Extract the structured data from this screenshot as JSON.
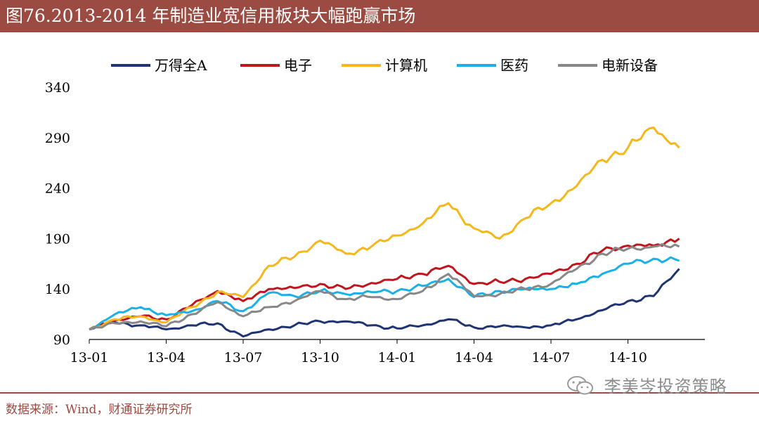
{
  "header": {
    "title": "图76.2013-2014 年制造业宽信用板块大幅跑赢市场"
  },
  "footer": {
    "source": "数据来源：Wind，财通证券研究所"
  },
  "watermark": {
    "text": "李美岑投资策略",
    "icon": "wechat-icon"
  },
  "colors": {
    "brand": "#9b4b42"
  },
  "chart_data": {
    "type": "line",
    "title": "",
    "xlabel": "",
    "ylabel": "",
    "x_ticks": [
      "13-01",
      "13-04",
      "13-07",
      "13-10",
      "14-01",
      "14-04",
      "14-07",
      "14-10"
    ],
    "x_range": [
      "2013-01",
      "2015-01"
    ],
    "y_ticks": [
      90,
      140,
      190,
      240,
      290,
      340
    ],
    "ylim": [
      90,
      340
    ],
    "grid": false,
    "legend": "top",
    "series": [
      {
        "name": "万得全A",
        "color": "#1f3473",
        "points": [
          [
            "2013-01",
            100
          ],
          [
            "2013-02",
            107
          ],
          [
            "2013-03",
            104
          ],
          [
            "2013-04",
            100
          ],
          [
            "2013-05",
            104
          ],
          [
            "2013-06",
            106
          ],
          [
            "2013-07",
            93
          ],
          [
            "2013-08",
            100
          ],
          [
            "2013-09",
            104
          ],
          [
            "2013-10",
            108
          ],
          [
            "2013-11",
            108
          ],
          [
            "2013-12",
            104
          ],
          [
            "2014-01",
            101
          ],
          [
            "2014-02",
            104
          ],
          [
            "2014-03",
            110
          ],
          [
            "2014-04",
            102
          ],
          [
            "2014-05",
            103
          ],
          [
            "2014-06",
            102
          ],
          [
            "2014-07",
            104
          ],
          [
            "2014-08",
            110
          ],
          [
            "2014-09",
            119
          ],
          [
            "2014-10",
            128
          ],
          [
            "2014-11",
            133
          ],
          [
            "2014-12",
            160
          ]
        ]
      },
      {
        "name": "电子",
        "color": "#c0171e",
        "points": [
          [
            "2013-01",
            100
          ],
          [
            "2013-02",
            109
          ],
          [
            "2013-03",
            113
          ],
          [
            "2013-04",
            110
          ],
          [
            "2013-05",
            124
          ],
          [
            "2013-06",
            138
          ],
          [
            "2013-07",
            128
          ],
          [
            "2013-08",
            140
          ],
          [
            "2013-09",
            141
          ],
          [
            "2013-10",
            145
          ],
          [
            "2013-11",
            140
          ],
          [
            "2013-12",
            146
          ],
          [
            "2014-01",
            150
          ],
          [
            "2014-02",
            155
          ],
          [
            "2014-03",
            163
          ],
          [
            "2014-04",
            145
          ],
          [
            "2014-05",
            147
          ],
          [
            "2014-06",
            150
          ],
          [
            "2014-07",
            155
          ],
          [
            "2014-08",
            165
          ],
          [
            "2014-09",
            178
          ],
          [
            "2014-10",
            183
          ],
          [
            "2014-11",
            183
          ],
          [
            "2014-12",
            190
          ]
        ]
      },
      {
        "name": "计算机",
        "color": "#f5b81c",
        "points": [
          [
            "2013-01",
            100
          ],
          [
            "2013-02",
            110
          ],
          [
            "2013-03",
            113
          ],
          [
            "2013-04",
            107
          ],
          [
            "2013-05",
            122
          ],
          [
            "2013-06",
            137
          ],
          [
            "2013-07",
            132
          ],
          [
            "2013-08",
            163
          ],
          [
            "2013-09",
            172
          ],
          [
            "2013-10",
            188
          ],
          [
            "2013-11",
            175
          ],
          [
            "2013-12",
            182
          ],
          [
            "2014-01",
            193
          ],
          [
            "2014-02",
            205
          ],
          [
            "2014-03",
            225
          ],
          [
            "2014-04",
            200
          ],
          [
            "2014-05",
            190
          ],
          [
            "2014-06",
            210
          ],
          [
            "2014-07",
            225
          ],
          [
            "2014-08",
            242
          ],
          [
            "2014-09",
            268
          ],
          [
            "2014-10",
            280
          ],
          [
            "2014-11",
            300
          ],
          [
            "2014-12",
            280
          ]
        ]
      },
      {
        "name": "医药",
        "color": "#1cb1e6",
        "points": [
          [
            "2013-01",
            100
          ],
          [
            "2013-02",
            115
          ],
          [
            "2013-03",
            122
          ],
          [
            "2013-04",
            114
          ],
          [
            "2013-05",
            118
          ],
          [
            "2013-06",
            128
          ],
          [
            "2013-07",
            118
          ],
          [
            "2013-08",
            136
          ],
          [
            "2013-09",
            133
          ],
          [
            "2013-10",
            138
          ],
          [
            "2013-11",
            135
          ],
          [
            "2013-12",
            137
          ],
          [
            "2014-01",
            138
          ],
          [
            "2014-02",
            143
          ],
          [
            "2014-03",
            150
          ],
          [
            "2014-04",
            132
          ],
          [
            "2014-05",
            138
          ],
          [
            "2014-06",
            140
          ],
          [
            "2014-07",
            140
          ],
          [
            "2014-08",
            145
          ],
          [
            "2014-09",
            155
          ],
          [
            "2014-10",
            165
          ],
          [
            "2014-11",
            170
          ],
          [
            "2014-12",
            168
          ]
        ]
      },
      {
        "name": "电新设备",
        "color": "#888888",
        "points": [
          [
            "2013-01",
            100
          ],
          [
            "2013-02",
            106
          ],
          [
            "2013-03",
            108
          ],
          [
            "2013-04",
            103
          ],
          [
            "2013-05",
            115
          ],
          [
            "2013-06",
            127
          ],
          [
            "2013-07",
            113
          ],
          [
            "2013-08",
            122
          ],
          [
            "2013-09",
            128
          ],
          [
            "2013-10",
            138
          ],
          [
            "2013-11",
            130
          ],
          [
            "2013-12",
            132
          ],
          [
            "2014-01",
            130
          ],
          [
            "2014-02",
            138
          ],
          [
            "2014-03",
            155
          ],
          [
            "2014-04",
            133
          ],
          [
            "2014-05",
            135
          ],
          [
            "2014-06",
            140
          ],
          [
            "2014-07",
            145
          ],
          [
            "2014-08",
            160
          ],
          [
            "2014-09",
            175
          ],
          [
            "2014-10",
            180
          ],
          [
            "2014-11",
            182
          ],
          [
            "2014-12",
            182
          ]
        ]
      }
    ]
  }
}
